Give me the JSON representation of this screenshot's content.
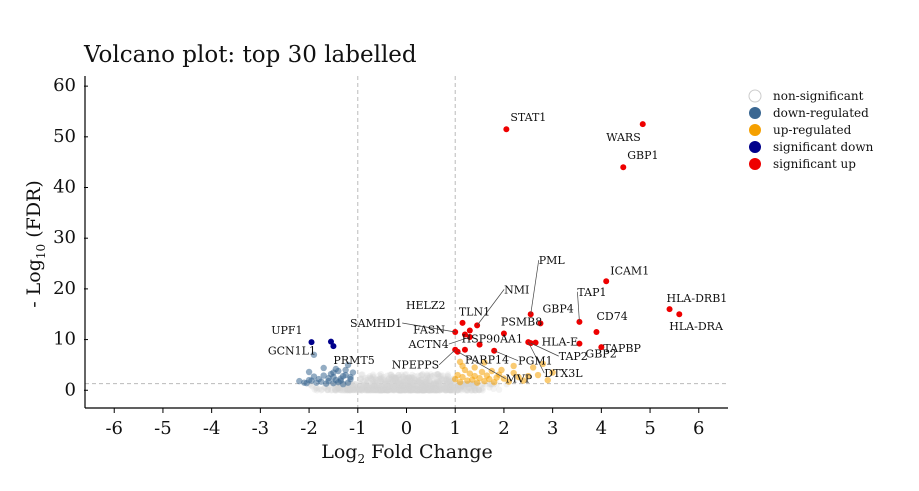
{
  "chart_data": {
    "type": "scatter",
    "title": "Volcano plot: top 30 labelled",
    "xlabel": {
      "prefix": "Log",
      "sub": "2",
      "suffix": " Fold Change"
    },
    "ylabel": {
      "prefix": "- Log",
      "sub": "10",
      "suffix": " (FDR)"
    },
    "xlim": [
      -6.6,
      6.6
    ],
    "ylim": [
      -3.5,
      62
    ],
    "xticks": [
      -6,
      -5,
      -4,
      -3,
      -2,
      -1,
      0,
      1,
      2,
      3,
      4,
      5,
      6
    ],
    "yticks": [
      0,
      10,
      20,
      30,
      40,
      50,
      60
    ],
    "thresholds": {
      "fc": [
        -1,
        1
      ],
      "fdr_line_y": 1.3
    },
    "grid": false,
    "legend_position": "right",
    "colors": {
      "non_significant": "#d3d3d3",
      "down_regulated": "#3a6792",
      "up_regulated": "#f5a000",
      "significant_down": "#00008b",
      "significant_up": "#ee0000"
    },
    "legend": [
      {
        "key": "non_significant",
        "label": "non-significant"
      },
      {
        "key": "down_regulated",
        "label": "down-regulated"
      },
      {
        "key": "up_regulated",
        "label": "up-regulated"
      },
      {
        "key": "significant_down",
        "label": "significant down"
      },
      {
        "key": "significant_up",
        "label": "significant up"
      }
    ],
    "series": [
      {
        "key": "down_regulated",
        "points": [
          [
            -1.1,
            3.5
          ],
          [
            -1.15,
            2.2
          ],
          [
            -1.2,
            1.5
          ],
          [
            -1.25,
            3.0
          ],
          [
            -1.3,
            2.8
          ],
          [
            -1.3,
            1.2
          ],
          [
            -1.35,
            2.3
          ],
          [
            -1.4,
            3.8
          ],
          [
            -1.4,
            1.6
          ],
          [
            -1.45,
            2.0
          ],
          [
            -1.5,
            2.6
          ],
          [
            -1.5,
            1.4
          ],
          [
            -1.55,
            3.2
          ],
          [
            -1.6,
            1.8
          ],
          [
            -1.6,
            2.4
          ],
          [
            -1.65,
            1.3
          ],
          [
            -1.7,
            2.9
          ],
          [
            -1.75,
            1.7
          ],
          [
            -1.8,
            2.2
          ],
          [
            -1.85,
            1.5
          ],
          [
            -1.9,
            2.7
          ],
          [
            -1.95,
            1.9
          ],
          [
            -2.0,
            3.6
          ],
          [
            -2.05,
            1.4
          ],
          [
            -1.9,
            7.0
          ],
          [
            -1.7,
            4.4
          ],
          [
            -1.2,
            5.0
          ],
          [
            -1.25,
            4.0
          ],
          [
            -2.0,
            2.0
          ],
          [
            -2.1,
            1.5
          ],
          [
            -2.2,
            1.8
          ],
          [
            -1.5,
            3.5
          ],
          [
            -1.35,
            1.9
          ],
          [
            -1.15,
            2.6
          ],
          [
            -1.45,
            4.2
          ]
        ]
      },
      {
        "key": "up_regulated",
        "points": [
          [
            1.0,
            2.2
          ],
          [
            1.05,
            3.0
          ],
          [
            1.1,
            1.6
          ],
          [
            1.15,
            2.6
          ],
          [
            1.2,
            4.0
          ],
          [
            1.25,
            1.9
          ],
          [
            1.3,
            3.3
          ],
          [
            1.35,
            2.1
          ],
          [
            1.4,
            2.8
          ],
          [
            1.45,
            1.5
          ],
          [
            1.5,
            2.4
          ],
          [
            1.55,
            3.6
          ],
          [
            1.6,
            1.8
          ],
          [
            1.65,
            2.9
          ],
          [
            1.7,
            2.2
          ],
          [
            1.75,
            3.8
          ],
          [
            1.8,
            1.6
          ],
          [
            1.85,
            2.5
          ],
          [
            1.9,
            3.1
          ],
          [
            2.0,
            2.3
          ],
          [
            2.1,
            1.7
          ],
          [
            2.2,
            3.4
          ],
          [
            2.3,
            2.6
          ],
          [
            2.4,
            1.9
          ],
          [
            2.5,
            2.8
          ],
          [
            2.6,
            4.5
          ],
          [
            2.7,
            3.0
          ],
          [
            2.8,
            5.2
          ],
          [
            2.9,
            2.0
          ],
          [
            3.0,
            3.5
          ],
          [
            1.15,
            4.8
          ],
          [
            1.4,
            4.5
          ],
          [
            2.2,
            4.8
          ],
          [
            1.6,
            5.5
          ],
          [
            1.1,
            5.6
          ],
          [
            1.95,
            4.0
          ]
        ]
      },
      {
        "key": "significant_down",
        "points": [
          [
            -1.95,
            9.5
          ],
          [
            -1.55,
            9.6
          ],
          [
            -1.5,
            8.7
          ]
        ]
      },
      {
        "key": "significant_up",
        "points": [
          [
            2.05,
            51.5
          ],
          [
            4.85,
            52.5
          ],
          [
            4.45,
            44.0
          ],
          [
            4.1,
            21.5
          ],
          [
            5.4,
            16.0
          ],
          [
            5.6,
            15.0
          ],
          [
            2.55,
            15.0
          ],
          [
            3.55,
            13.5
          ],
          [
            1.15,
            13.3
          ],
          [
            1.45,
            12.8
          ],
          [
            1.3,
            11.8
          ],
          [
            1.0,
            11.5
          ],
          [
            1.2,
            11.0
          ],
          [
            1.3,
            10.5
          ],
          [
            2.0,
            11.2
          ],
          [
            2.75,
            13.2
          ],
          [
            2.5,
            9.5
          ],
          [
            2.65,
            9.4
          ],
          [
            2.55,
            9.3
          ],
          [
            3.55,
            9.2
          ],
          [
            3.9,
            11.5
          ],
          [
            4.0,
            8.5
          ],
          [
            1.0,
            8.0
          ],
          [
            1.2,
            8.0
          ],
          [
            1.5,
            9.0
          ],
          [
            1.8,
            7.8
          ],
          [
            1.05,
            7.6
          ]
        ]
      }
    ],
    "annotations": [
      {
        "text": "STAT1",
        "x": 2.05,
        "y": 51.5
      },
      {
        "text": "WARS",
        "x": 4.85,
        "y": 52.5
      },
      {
        "text": "GBP1",
        "x": 4.45,
        "y": 44.0
      },
      {
        "text": "ICAM1",
        "x": 4.1,
        "y": 21.5
      },
      {
        "text": "HLA-DRB1",
        "x": 5.4,
        "y": 16.0
      },
      {
        "text": "HLA-DRA",
        "x": 5.6,
        "y": 15.0
      },
      {
        "text": "PML",
        "x": 2.55,
        "y": 15.0
      },
      {
        "text": "TAP1",
        "x": 3.55,
        "y": 13.5
      },
      {
        "text": "NMI",
        "x": 1.45,
        "y": 12.8
      },
      {
        "text": "TLN1",
        "x": 1.3,
        "y": 11.8
      },
      {
        "text": "HELZ2",
        "x": 1.15,
        "y": 13.3
      },
      {
        "text": "GBP4",
        "x": 2.75,
        "y": 13.2
      },
      {
        "text": "CD74",
        "x": 3.9,
        "y": 11.5
      },
      {
        "text": "SAMHD1",
        "x": 1.0,
        "y": 11.5
      },
      {
        "text": "FASN",
        "x": 1.2,
        "y": 11.0
      },
      {
        "text": "PSMB8",
        "x": 2.0,
        "y": 11.2
      },
      {
        "text": "HLA-E",
        "x": 2.65,
        "y": 9.4
      },
      {
        "text": "TAPBP",
        "x": 4.0,
        "y": 8.5
      },
      {
        "text": "ACTN4",
        "x": 1.3,
        "y": 10.5
      },
      {
        "text": "HSP90AA1",
        "x": 1.5,
        "y": 9.0
      },
      {
        "text": "TAP2",
        "x": 2.55,
        "y": 9.3
      },
      {
        "text": "GBP2",
        "x": 3.55,
        "y": 9.2
      },
      {
        "text": "NPEPPS",
        "x": 1.0,
        "y": 8.0
      },
      {
        "text": "PARP14",
        "x": 1.2,
        "y": 8.0
      },
      {
        "text": "PGM1",
        "x": 1.8,
        "y": 7.8
      },
      {
        "text": "MVP",
        "x": 1.05,
        "y": 7.6
      },
      {
        "text": "DTX3L",
        "x": 2.5,
        "y": 9.5
      },
      {
        "text": "UPF1",
        "x": -1.95,
        "y": 9.5
      },
      {
        "text": "GCN1L1",
        "x": -1.55,
        "y": 9.6
      },
      {
        "text": "PRMT5",
        "x": -1.5,
        "y": 8.7
      }
    ]
  }
}
